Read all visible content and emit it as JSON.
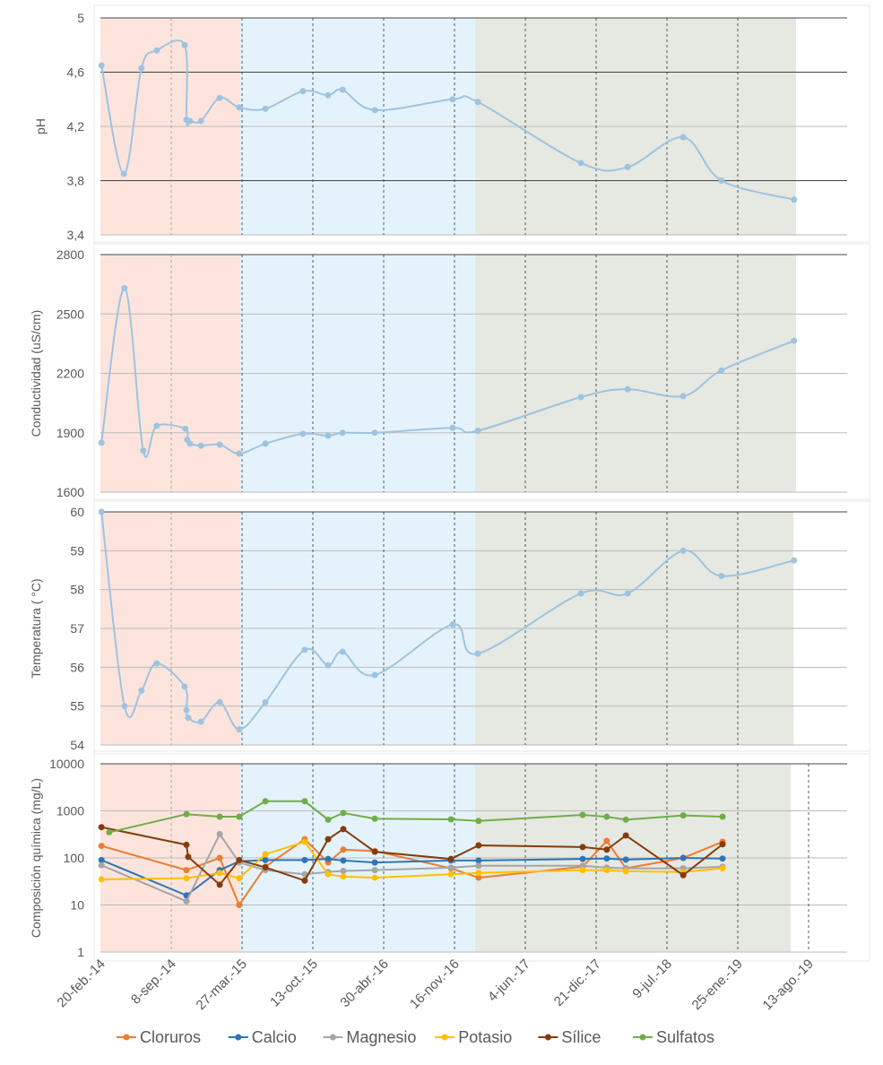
{
  "chart_data": [
    {
      "type": "line",
      "ylabel": "pH",
      "yticks": [
        "5",
        "4,6",
        "4,2",
        "3,8",
        "3,4"
      ],
      "ylim": [
        3.4,
        5
      ],
      "x_unit": "days since 20-feb.-14",
      "x": [
        3,
        66,
        116,
        159,
        238,
        243,
        253,
        284,
        337,
        392,
        466,
        572,
        643,
        684,
        775,
        995,
        1066,
        1357,
        1489,
        1646,
        1754,
        1959
      ],
      "values": [
        4.65,
        3.85,
        4.63,
        4.76,
        4.8,
        4.25,
        4.24,
        4.24,
        4.41,
        4.34,
        4.33,
        4.46,
        4.43,
        4.47,
        4.32,
        4.4,
        4.38,
        3.93,
        3.9,
        4.12,
        3.8,
        3.66
      ]
    },
    {
      "type": "line",
      "ylabel": "Conductividad (uS/cm)",
      "yticks": [
        "2800",
        "2500",
        "2200",
        "1900",
        "1600"
      ],
      "ylim": [
        1600,
        2800
      ],
      "x_unit": "days since 20-feb.-14",
      "x": [
        3,
        68,
        121,
        159,
        240,
        245,
        253,
        284,
        337,
        392,
        466,
        572,
        643,
        684,
        775,
        995,
        1066,
        1357,
        1489,
        1646,
        1754,
        1959
      ],
      "values": [
        1850,
        2630,
        1810,
        1935,
        1920,
        1865,
        1845,
        1835,
        1840,
        1795,
        1845,
        1895,
        1885,
        1900,
        1900,
        1925,
        1910,
        2080,
        2120,
        2085,
        2215,
        2365
      ]
    },
    {
      "type": "line",
      "ylabel": "Temperatura ( °C)",
      "yticks": [
        "60",
        "59",
        "58",
        "57",
        "56",
        "55",
        "54"
      ],
      "ylim": [
        54,
        60
      ],
      "x_unit": "days since 20-feb.-14",
      "x": [
        3,
        68,
        116,
        159,
        238,
        243,
        248,
        284,
        337,
        392,
        466,
        577,
        643,
        684,
        775,
        995,
        1066,
        1357,
        1489,
        1646,
        1754,
        1959
      ],
      "values": [
        60,
        55.0,
        55.4,
        56.1,
        55.5,
        54.9,
        54.7,
        54.6,
        55.1,
        54.4,
        55.1,
        56.45,
        56.05,
        56.4,
        55.8,
        57.1,
        56.35,
        57.9,
        57.9,
        59.0,
        58.35,
        58.75
      ]
    },
    {
      "type": "line",
      "yscale": "log",
      "ylabel": "Composición química (mg/L)",
      "yticks": [
        "10000",
        "1000",
        "100",
        "10",
        "1"
      ],
      "ylim": [
        1,
        10000
      ],
      "x_unit": "days since 20-feb.-14",
      "xticks": [
        "20-feb.-14",
        "8-sep.-14",
        "27-mar.-15",
        "13-oct.-15",
        "30-abr.-16",
        "16-nov.-16",
        "4-jun.-17",
        "21-dic.-17",
        "9-jul.-18",
        "25-ene.-19",
        "13-ago.-19"
      ],
      "x": [
        3,
        25,
        243,
        248,
        337,
        392,
        466,
        577,
        643,
        686,
        775,
        990,
        1068,
        1362,
        1430,
        1484,
        1646,
        1757
      ],
      "legend_position": "bottom",
      "series": [
        {
          "name": "Cloruros",
          "color": "#ed7d31",
          "values": [
            180,
            null,
            55,
            null,
            100,
            10,
            65,
            250,
            80,
            150,
            140,
            60,
            38,
            65,
            230,
            60,
            100,
            220
          ]
        },
        {
          "name": "Calcio",
          "color": "#2e75b6",
          "values": [
            90,
            null,
            16,
            null,
            55,
            85,
            90,
            90,
            95,
            88,
            80,
            88,
            88,
            95,
            97,
            92,
            100,
            97
          ]
        },
        {
          "name": "Magnesio",
          "color": "#a5a5a5",
          "values": [
            70,
            null,
            12,
            null,
            320,
            80,
            55,
            45,
            50,
            53,
            55,
            62,
            68,
            68,
            62,
            60,
            60,
            65
          ]
        },
        {
          "name": "Potasio",
          "color": "#ffc000",
          "values": [
            35,
            null,
            37,
            null,
            48,
            37,
            120,
            220,
            45,
            40,
            38,
            45,
            48,
            55,
            55,
            52,
            50,
            60
          ]
        },
        {
          "name": "Sílice",
          "color": "#843c0c",
          "values": [
            450,
            null,
            190,
            105,
            27,
            90,
            63,
            33,
            250,
            410,
            135,
            95,
            185,
            170,
            150,
            300,
            43,
            195
          ]
        },
        {
          "name": "Sulfatos",
          "color": "#70ad47",
          "values": [
            null,
            350,
            850,
            null,
            750,
            750,
            1600,
            1600,
            650,
            900,
            680,
            660,
            610,
            820,
            750,
            650,
            800,
            750
          ]
        }
      ]
    }
  ],
  "periods": {
    "colors": [
      "#fce4dc",
      "#e4f3fb",
      "#e6e8e2"
    ]
  },
  "line_color": "#9ec3e0"
}
